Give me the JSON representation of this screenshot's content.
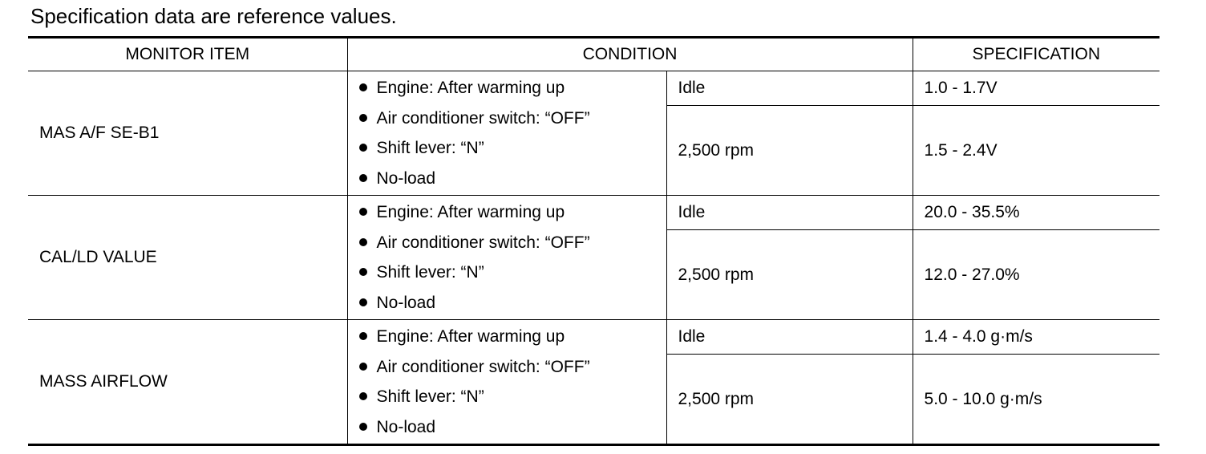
{
  "caption": "Specification data are reference values.",
  "headers": {
    "monitor_item": "MONITOR ITEM",
    "condition": "CONDITION",
    "specification": "SPECIFICATION"
  },
  "rows": [
    {
      "monitor_item": "MAS A/F SE-B1",
      "conditions": [
        "Engine: After warming up",
        "Air conditioner switch: “OFF”",
        "Shift lever: “N”",
        "No-load"
      ],
      "sub": [
        {
          "condition": "Idle",
          "specification": "1.0 - 1.7V"
        },
        {
          "condition": "2,500 rpm",
          "specification": "1.5 - 2.4V"
        }
      ]
    },
    {
      "monitor_item": "CAL/LD VALUE",
      "conditions": [
        "Engine: After warming up",
        "Air conditioner switch: “OFF”",
        "Shift lever: “N”",
        "No-load"
      ],
      "sub": [
        {
          "condition": "Idle",
          "specification": "20.0 - 35.5%"
        },
        {
          "condition": "2,500 rpm",
          "specification": "12.0 - 27.0%"
        }
      ]
    },
    {
      "monitor_item": "MASS AIRFLOW",
      "conditions": [
        "Engine: After warming up",
        "Air conditioner switch: “OFF”",
        "Shift lever: “N”",
        "No-load"
      ],
      "sub": [
        {
          "condition": "Idle",
          "specification": "1.4 - 4.0 g·m/s"
        },
        {
          "condition": "2,500 rpm",
          "specification": "5.0 - 10.0 g·m/s"
        }
      ]
    }
  ]
}
